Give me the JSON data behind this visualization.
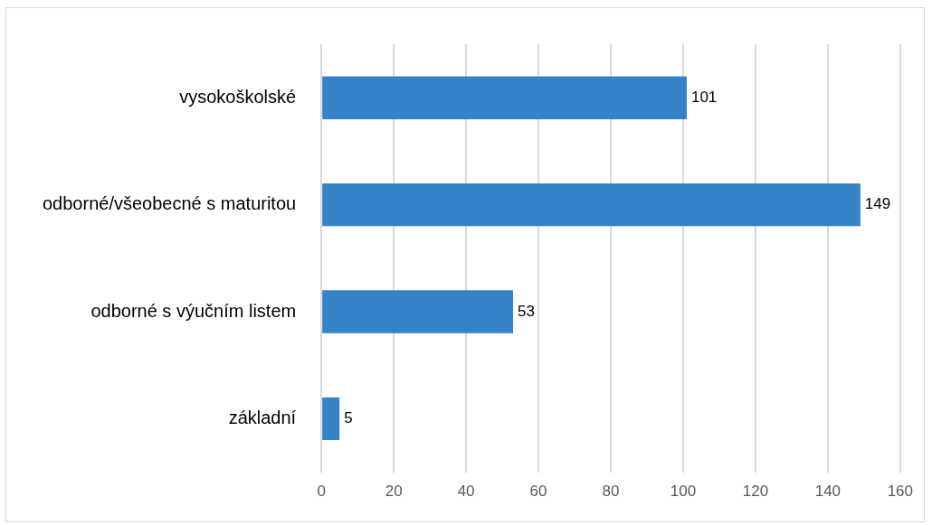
{
  "chart_data": {
    "type": "bar",
    "orientation": "horizontal",
    "categories": [
      "vysokoškolské",
      "odborné/všeobecné s maturitou",
      "odborné s výučním listem",
      "základní"
    ],
    "values": [
      101,
      149,
      53,
      5
    ],
    "color": "#3682c8",
    "xlim": [
      0,
      160
    ],
    "xticks": [
      0,
      20,
      40,
      60,
      80,
      100,
      120,
      140,
      160
    ],
    "grid": "x",
    "legend": false,
    "data_labels": true
  }
}
